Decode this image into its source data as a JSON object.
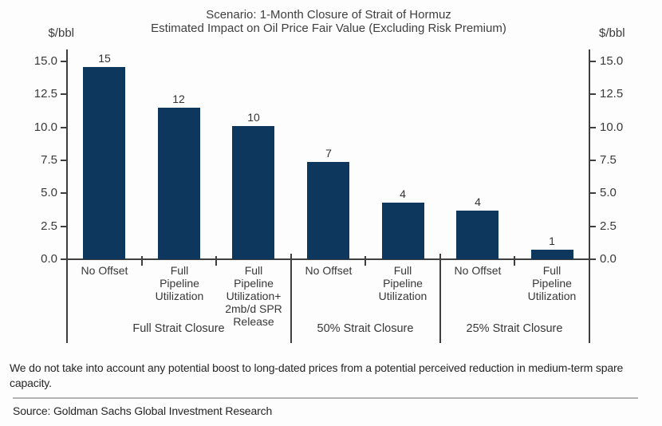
{
  "header": {
    "title_line1": "Scenario: 1-Month Closure of Strait of Hormuz",
    "title_line2": "Estimated Impact on Oil Price Fair Value (Excluding Risk Premium)"
  },
  "axes": {
    "left_unit": "$/bbl",
    "right_unit": "$/bbl"
  },
  "chart_data": {
    "type": "bar",
    "title": "Scenario: 1-Month Closure of Strait of Hormuz — Estimated Impact on Oil Price Fair Value (Excluding Risk Premium)",
    "ylabel": "$/bbl",
    "ylim": [
      0,
      15
    ],
    "yticks": [
      0,
      2.5,
      5,
      7.5,
      10,
      12.5,
      15
    ],
    "grid": false,
    "bar_color": "#0e375d",
    "groups": [
      {
        "label": "Full Strait Closure",
        "bars": [
          {
            "category_lines": [
              "No Offset"
            ],
            "value_label": "15",
            "bar_value": 14.6
          },
          {
            "category_lines": [
              "Full",
              "Pipeline",
              "Utilization"
            ],
            "value_label": "12",
            "bar_value": 11.5
          },
          {
            "category_lines": [
              "Full",
              "Pipeline",
              "Utilization+",
              "2mb/d SPR",
              "Release"
            ],
            "value_label": "10",
            "bar_value": 10.1
          }
        ]
      },
      {
        "label": "50% Strait Closure",
        "bars": [
          {
            "category_lines": [
              "No Offset"
            ],
            "value_label": "7",
            "bar_value": 7.4
          },
          {
            "category_lines": [
              "Full",
              "Pipeline",
              "Utilization"
            ],
            "value_label": "4",
            "bar_value": 4.3
          }
        ]
      },
      {
        "label": "25% Strait Closure",
        "bars": [
          {
            "category_lines": [
              "No Offset"
            ],
            "value_label": "4",
            "bar_value": 3.7
          },
          {
            "category_lines": [
              "Full",
              "Pipeline",
              "Utilization"
            ],
            "value_label": "1",
            "bar_value": 0.7
          }
        ]
      }
    ]
  },
  "footnote": "We do not take into account any potential boost to long-dated prices from a potential perceived reduction in medium-term spare capacity.",
  "source": "Source: Goldman Sachs Global Investment Research"
}
